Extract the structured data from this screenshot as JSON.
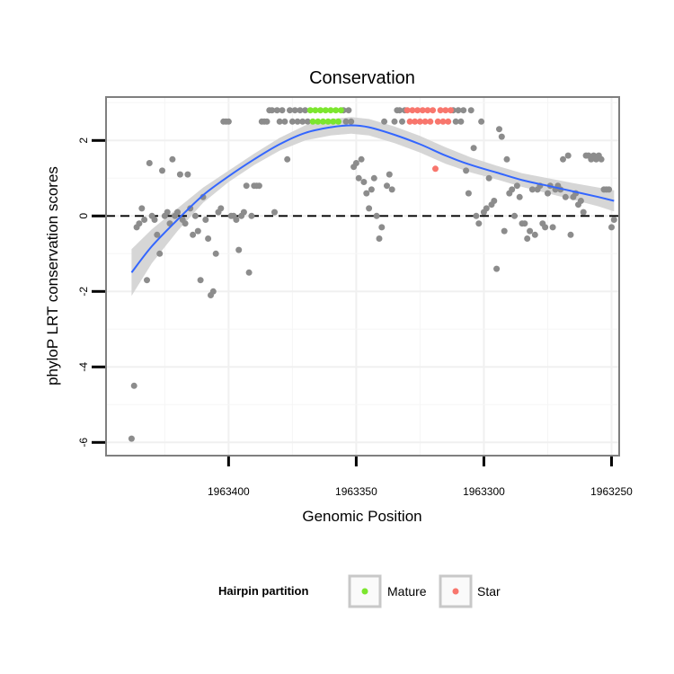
{
  "chart_data": {
    "type": "scatter",
    "title": "Conservation",
    "xlabel": "Genomic Position",
    "ylabel": "phyloP LRT conservation scores",
    "x_reversed": true,
    "xlim": [
      1963448,
      1963247
    ],
    "ylim": [
      -6.35,
      3.15
    ],
    "x_ticks": [
      1963400,
      1963350,
      1963300,
      1963250
    ],
    "x_tick_labels": [
      "1963400",
      "1963350",
      "1963300",
      "1963250"
    ],
    "y_ticks": [
      -6,
      -4,
      -2,
      0,
      2
    ],
    "y_tick_labels": [
      "-6",
      "-4",
      "-2",
      "0",
      "2"
    ],
    "reference_line": {
      "y": 0,
      "style": "dashed"
    },
    "legend": {
      "title": "Hairpin partition",
      "position": "bottom",
      "entries": [
        {
          "label": "Mature",
          "color": "#7CE62E"
        },
        {
          "label": "Star",
          "color": "#F8766D"
        }
      ]
    },
    "colors": {
      "background": "#33FF33",
      "other": "#8C8C8C",
      "mature": "#7CE62E",
      "star": "#F8766D",
      "smooth": "#3366FF",
      "band": "#D2D2D2"
    },
    "series": [
      {
        "name": "Other",
        "color": "#8C8C8C",
        "points": [
          [
            1963438,
            -5.9
          ],
          [
            1963437,
            -4.5
          ],
          [
            1963436,
            -0.3
          ],
          [
            1963435,
            -0.2
          ],
          [
            1963434,
            0.2
          ],
          [
            1963433,
            -0.1
          ],
          [
            1963432,
            -1.7
          ],
          [
            1963431,
            1.4
          ],
          [
            1963430,
            0.0
          ],
          [
            1963429,
            -0.1
          ],
          [
            1963428,
            -0.5
          ],
          [
            1963427,
            -1.0
          ],
          [
            1963426,
            1.2
          ],
          [
            1963425,
            0.0
          ],
          [
            1963424,
            0.1
          ],
          [
            1963423,
            -0.2
          ],
          [
            1963422,
            1.5
          ],
          [
            1963421,
            0.0
          ],
          [
            1963420,
            0.1
          ],
          [
            1963419,
            1.1
          ],
          [
            1963418,
            -0.1
          ],
          [
            1963417,
            -0.2
          ],
          [
            1963416,
            1.1
          ],
          [
            1963415,
            0.2
          ],
          [
            1963414,
            -0.5
          ],
          [
            1963413,
            0.0
          ],
          [
            1963412,
            -0.4
          ],
          [
            1963411,
            -1.7
          ],
          [
            1963410,
            0.5
          ],
          [
            1963409,
            -0.1
          ],
          [
            1963408,
            -0.6
          ],
          [
            1963407,
            -2.1
          ],
          [
            1963406,
            -2.0
          ],
          [
            1963405,
            -1.0
          ],
          [
            1963404,
            0.1
          ],
          [
            1963403,
            0.2
          ],
          [
            1963402,
            2.5
          ],
          [
            1963401,
            2.5
          ],
          [
            1963400,
            2.5
          ],
          [
            1963399,
            0.0
          ],
          [
            1963398,
            0.0
          ],
          [
            1963397,
            -0.1
          ],
          [
            1963396,
            -0.9
          ],
          [
            1963395,
            0.0
          ],
          [
            1963394,
            0.1
          ],
          [
            1963393,
            0.8
          ],
          [
            1963392,
            -1.5
          ],
          [
            1963391,
            0.0
          ],
          [
            1963390,
            0.8
          ],
          [
            1963389,
            0.8
          ],
          [
            1963388,
            0.8
          ],
          [
            1963387,
            2.5
          ],
          [
            1963386,
            2.5
          ],
          [
            1963385,
            2.5
          ],
          [
            1963384,
            2.8
          ],
          [
            1963383,
            2.8
          ],
          [
            1963382,
            0.1
          ],
          [
            1963381,
            2.8
          ],
          [
            1963380,
            2.5
          ],
          [
            1963379,
            2.8
          ],
          [
            1963378,
            2.5
          ],
          [
            1963377,
            1.5
          ],
          [
            1963376,
            2.8
          ],
          [
            1963375,
            2.5
          ],
          [
            1963374,
            2.8
          ],
          [
            1963373,
            2.5
          ],
          [
            1963372,
            2.8
          ],
          [
            1963371,
            2.5
          ],
          [
            1963370,
            2.8
          ],
          [
            1963369,
            2.5
          ],
          [
            1963355,
            2.8
          ],
          [
            1963354,
            2.5
          ],
          [
            1963353,
            2.8
          ],
          [
            1963352,
            2.5
          ],
          [
            1963351,
            1.3
          ],
          [
            1963350,
            1.4
          ],
          [
            1963349,
            1.0
          ],
          [
            1963348,
            1.5
          ],
          [
            1963347,
            0.9
          ],
          [
            1963346,
            0.6
          ],
          [
            1963345,
            0.2
          ],
          [
            1963344,
            0.7
          ],
          [
            1963343,
            1.0
          ],
          [
            1963342,
            0.0
          ],
          [
            1963341,
            -0.6
          ],
          [
            1963340,
            -0.3
          ],
          [
            1963339,
            2.5
          ],
          [
            1963338,
            0.8
          ],
          [
            1963337,
            1.1
          ],
          [
            1963336,
            0.7
          ],
          [
            1963335,
            2.5
          ],
          [
            1963334,
            2.8
          ],
          [
            1963333,
            2.8
          ],
          [
            1963332,
            2.5
          ],
          [
            1963331,
            2.8
          ],
          [
            1963312,
            2.8
          ],
          [
            1963311,
            2.5
          ],
          [
            1963310,
            2.8
          ],
          [
            1963309,
            2.5
          ],
          [
            1963308,
            2.8
          ],
          [
            1963307,
            1.2
          ],
          [
            1963306,
            0.6
          ],
          [
            1963305,
            2.8
          ],
          [
            1963304,
            1.8
          ],
          [
            1963303,
            0.0
          ],
          [
            1963302,
            -0.2
          ],
          [
            1963301,
            2.5
          ],
          [
            1963300,
            0.1
          ],
          [
            1963299,
            0.2
          ],
          [
            1963298,
            1.0
          ],
          [
            1963297,
            0.3
          ],
          [
            1963296,
            0.4
          ],
          [
            1963295,
            -1.4
          ],
          [
            1963294,
            2.3
          ],
          [
            1963293,
            2.1
          ],
          [
            1963292,
            -0.4
          ],
          [
            1963291,
            1.5
          ],
          [
            1963290,
            0.6
          ],
          [
            1963289,
            0.7
          ],
          [
            1963288,
            0.0
          ],
          [
            1963287,
            0.8
          ],
          [
            1963286,
            0.5
          ],
          [
            1963285,
            -0.2
          ],
          [
            1963284,
            -0.2
          ],
          [
            1963283,
            -0.6
          ],
          [
            1963282,
            -0.4
          ],
          [
            1963281,
            0.7
          ],
          [
            1963280,
            -0.5
          ],
          [
            1963279,
            0.7
          ],
          [
            1963278,
            0.8
          ],
          [
            1963277,
            -0.2
          ],
          [
            1963276,
            -0.3
          ],
          [
            1963275,
            0.6
          ],
          [
            1963274,
            0.8
          ],
          [
            1963273,
            -0.3
          ],
          [
            1963272,
            0.7
          ],
          [
            1963271,
            0.8
          ],
          [
            1963270,
            0.7
          ],
          [
            1963269,
            1.5
          ],
          [
            1963268,
            0.5
          ],
          [
            1963267,
            1.6
          ],
          [
            1963266,
            -0.5
          ],
          [
            1963265,
            0.5
          ],
          [
            1963264,
            0.6
          ],
          [
            1963263,
            0.3
          ],
          [
            1963262,
            0.4
          ],
          [
            1963261,
            0.1
          ],
          [
            1963260,
            1.6
          ],
          [
            1963259,
            1.6
          ],
          [
            1963258,
            1.5
          ],
          [
            1963257,
            1.6
          ],
          [
            1963256,
            1.5
          ],
          [
            1963255,
            1.6
          ],
          [
            1963254,
            1.5
          ],
          [
            1963253,
            0.7
          ],
          [
            1963252,
            0.7
          ],
          [
            1963251,
            0.7
          ],
          [
            1963250,
            -0.3
          ],
          [
            1963249,
            -0.1
          ]
        ]
      },
      {
        "name": "Mature",
        "color": "#7CE62E",
        "points": [
          [
            1963368,
            2.8
          ],
          [
            1963367,
            2.5
          ],
          [
            1963366,
            2.8
          ],
          [
            1963365,
            2.5
          ],
          [
            1963364,
            2.8
          ],
          [
            1963363,
            2.5
          ],
          [
            1963362,
            2.8
          ],
          [
            1963361,
            2.5
          ],
          [
            1963360,
            2.8
          ],
          [
            1963359,
            2.5
          ],
          [
            1963358,
            2.8
          ],
          [
            1963357,
            2.5
          ],
          [
            1963356,
            2.8
          ]
        ]
      },
      {
        "name": "Star",
        "color": "#F8766D",
        "points": [
          [
            1963330,
            2.8
          ],
          [
            1963329,
            2.5
          ],
          [
            1963328,
            2.8
          ],
          [
            1963327,
            2.5
          ],
          [
            1963326,
            2.8
          ],
          [
            1963325,
            2.5
          ],
          [
            1963324,
            2.8
          ],
          [
            1963323,
            2.5
          ],
          [
            1963322,
            2.8
          ],
          [
            1963321,
            2.5
          ],
          [
            1963320,
            2.8
          ],
          [
            1963319,
            1.25
          ],
          [
            1963318,
            2.5
          ],
          [
            1963317,
            2.8
          ],
          [
            1963316,
            2.5
          ],
          [
            1963315,
            2.8
          ],
          [
            1963314,
            2.5
          ],
          [
            1963313,
            2.8
          ]
        ]
      }
    ],
    "smooth": {
      "method": "loess",
      "color": "#3366FF",
      "points": [
        [
          1963438,
          -1.5
        ],
        [
          1963430,
          -0.8
        ],
        [
          1963420,
          -0.1
        ],
        [
          1963410,
          0.55
        ],
        [
          1963400,
          1.05
        ],
        [
          1963390,
          1.5
        ],
        [
          1963380,
          1.9
        ],
        [
          1963370,
          2.2
        ],
        [
          1963360,
          2.35
        ],
        [
          1963352,
          2.4
        ],
        [
          1963345,
          2.35
        ],
        [
          1963335,
          2.15
        ],
        [
          1963325,
          1.9
        ],
        [
          1963315,
          1.6
        ],
        [
          1963305,
          1.35
        ],
        [
          1963295,
          1.15
        ],
        [
          1963285,
          0.95
        ],
        [
          1963275,
          0.8
        ],
        [
          1963265,
          0.65
        ],
        [
          1963255,
          0.5
        ],
        [
          1963249,
          0.4
        ]
      ],
      "band_halfwidth": [
        0.62,
        0.45,
        0.3,
        0.2,
        0.15,
        0.15,
        0.17,
        0.2,
        0.22,
        0.22,
        0.22,
        0.22,
        0.22,
        0.22,
        0.2,
        0.18,
        0.18,
        0.2,
        0.22,
        0.25,
        0.28
      ]
    }
  }
}
